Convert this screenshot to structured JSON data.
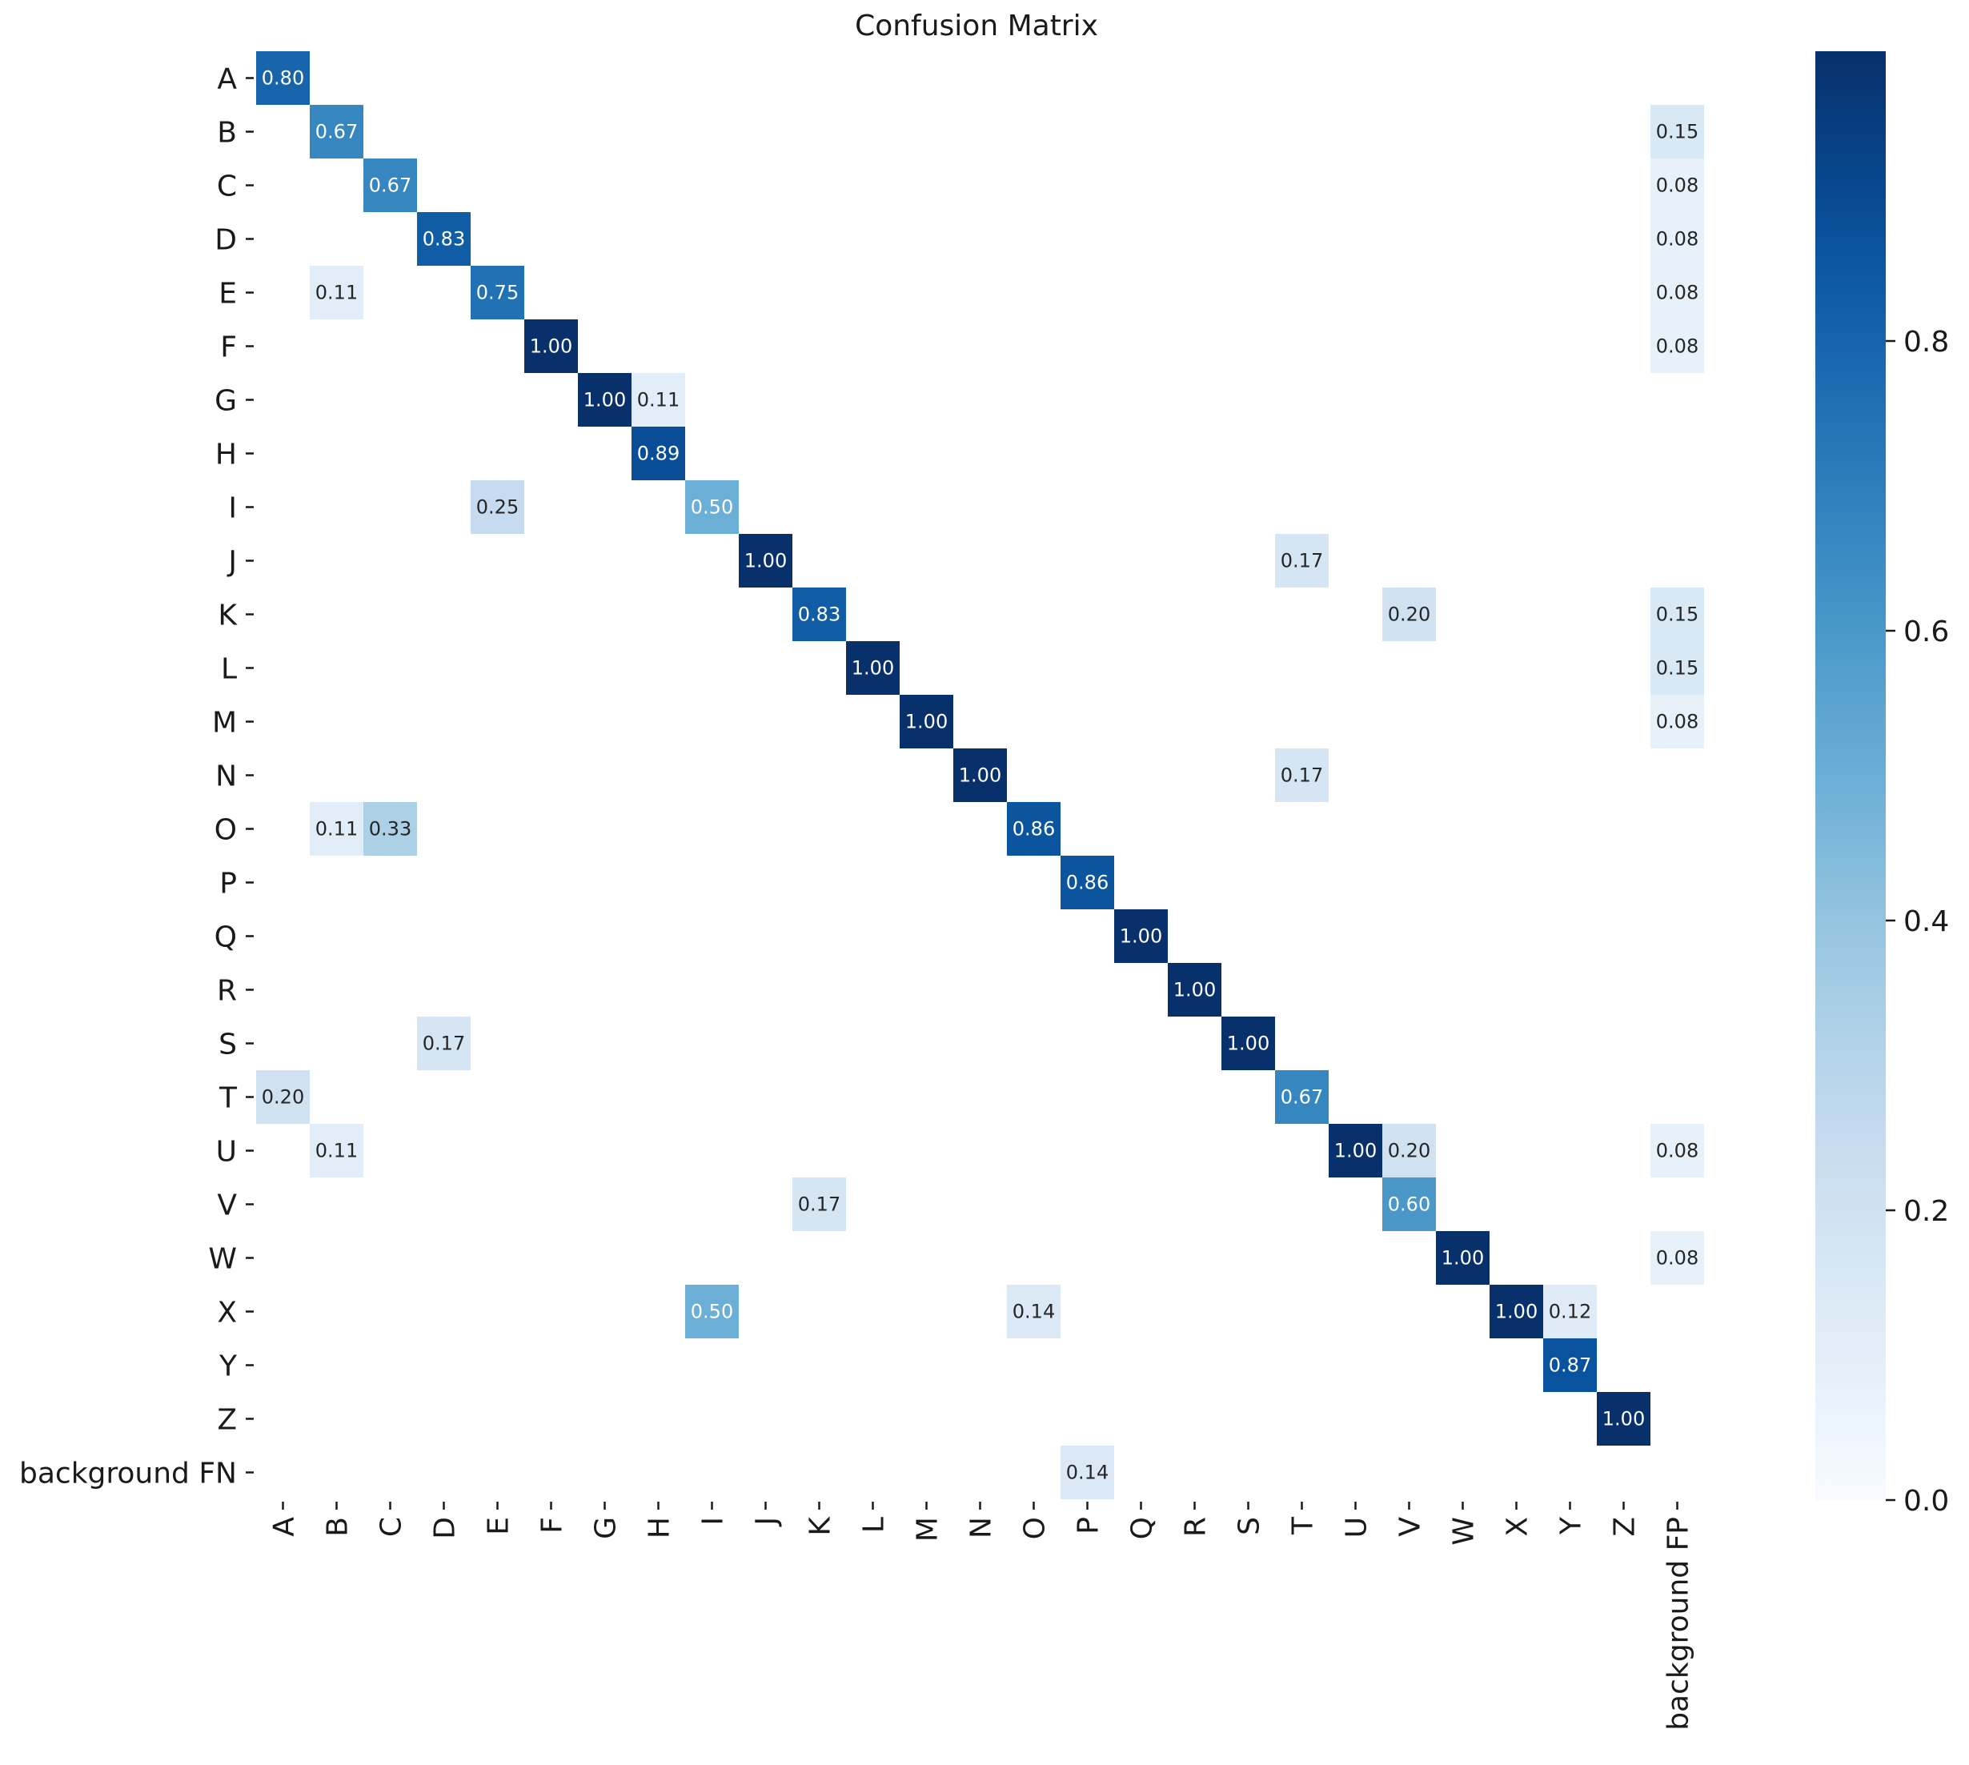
{
  "chart_data": {
    "type": "heatmap",
    "title": "Confusion Matrix",
    "rows": [
      "A",
      "B",
      "C",
      "D",
      "E",
      "F",
      "G",
      "H",
      "I",
      "J",
      "K",
      "L",
      "M",
      "N",
      "O",
      "P",
      "Q",
      "R",
      "S",
      "T",
      "U",
      "V",
      "W",
      "X",
      "Y",
      "Z",
      "background FN"
    ],
    "columns": [
      "A",
      "B",
      "C",
      "D",
      "E",
      "F",
      "G",
      "H",
      "I",
      "J",
      "K",
      "L",
      "M",
      "N",
      "O",
      "P",
      "Q",
      "R",
      "S",
      "T",
      "U",
      "V",
      "W",
      "X",
      "Y",
      "Z",
      "background FP"
    ],
    "cells": [
      {
        "row": "A",
        "col": "A",
        "value": 0.8,
        "label": "0.80"
      },
      {
        "row": "B",
        "col": "B",
        "value": 0.67,
        "label": "0.67"
      },
      {
        "row": "B",
        "col": "background FP",
        "value": 0.15,
        "label": "0.15"
      },
      {
        "row": "C",
        "col": "C",
        "value": 0.67,
        "label": "0.67"
      },
      {
        "row": "C",
        "col": "background FP",
        "value": 0.08,
        "label": "0.08"
      },
      {
        "row": "D",
        "col": "D",
        "value": 0.83,
        "label": "0.83"
      },
      {
        "row": "D",
        "col": "background FP",
        "value": 0.08,
        "label": "0.08"
      },
      {
        "row": "E",
        "col": "B",
        "value": 0.11,
        "label": "0.11"
      },
      {
        "row": "E",
        "col": "E",
        "value": 0.75,
        "label": "0.75"
      },
      {
        "row": "E",
        "col": "background FP",
        "value": 0.08,
        "label": "0.08"
      },
      {
        "row": "F",
        "col": "F",
        "value": 1.0,
        "label": "1.00"
      },
      {
        "row": "F",
        "col": "background FP",
        "value": 0.08,
        "label": "0.08"
      },
      {
        "row": "G",
        "col": "G",
        "value": 1.0,
        "label": "1.00"
      },
      {
        "row": "G",
        "col": "H",
        "value": 0.11,
        "label": "0.11"
      },
      {
        "row": "H",
        "col": "H",
        "value": 0.89,
        "label": "0.89"
      },
      {
        "row": "I",
        "col": "E",
        "value": 0.25,
        "label": "0.25"
      },
      {
        "row": "I",
        "col": "I",
        "value": 0.5,
        "label": "0.50"
      },
      {
        "row": "J",
        "col": "J",
        "value": 1.0,
        "label": "1.00"
      },
      {
        "row": "J",
        "col": "T",
        "value": 0.17,
        "label": "0.17"
      },
      {
        "row": "K",
        "col": "K",
        "value": 0.83,
        "label": "0.83"
      },
      {
        "row": "K",
        "col": "V",
        "value": 0.2,
        "label": "0.20"
      },
      {
        "row": "K",
        "col": "background FP",
        "value": 0.15,
        "label": "0.15"
      },
      {
        "row": "L",
        "col": "L",
        "value": 1.0,
        "label": "1.00"
      },
      {
        "row": "L",
        "col": "background FP",
        "value": 0.15,
        "label": "0.15"
      },
      {
        "row": "M",
        "col": "M",
        "value": 1.0,
        "label": "1.00"
      },
      {
        "row": "M",
        "col": "background FP",
        "value": 0.08,
        "label": "0.08"
      },
      {
        "row": "N",
        "col": "N",
        "value": 1.0,
        "label": "1.00"
      },
      {
        "row": "N",
        "col": "T",
        "value": 0.17,
        "label": "0.17"
      },
      {
        "row": "O",
        "col": "B",
        "value": 0.11,
        "label": "0.11"
      },
      {
        "row": "O",
        "col": "C",
        "value": 0.33,
        "label": "0.33"
      },
      {
        "row": "O",
        "col": "O",
        "value": 0.86,
        "label": "0.86"
      },
      {
        "row": "P",
        "col": "P",
        "value": 0.86,
        "label": "0.86"
      },
      {
        "row": "Q",
        "col": "Q",
        "value": 1.0,
        "label": "1.00"
      },
      {
        "row": "R",
        "col": "R",
        "value": 1.0,
        "label": "1.00"
      },
      {
        "row": "S",
        "col": "D",
        "value": 0.17,
        "label": "0.17"
      },
      {
        "row": "S",
        "col": "S",
        "value": 1.0,
        "label": "1.00"
      },
      {
        "row": "T",
        "col": "A",
        "value": 0.2,
        "label": "0.20"
      },
      {
        "row": "T",
        "col": "T",
        "value": 0.67,
        "label": "0.67"
      },
      {
        "row": "U",
        "col": "B",
        "value": 0.11,
        "label": "0.11"
      },
      {
        "row": "U",
        "col": "U",
        "value": 1.0,
        "label": "1.00"
      },
      {
        "row": "U",
        "col": "V",
        "value": 0.2,
        "label": "0.20"
      },
      {
        "row": "U",
        "col": "background FP",
        "value": 0.08,
        "label": "0.08"
      },
      {
        "row": "V",
        "col": "K",
        "value": 0.17,
        "label": "0.17"
      },
      {
        "row": "V",
        "col": "V",
        "value": 0.6,
        "label": "0.60"
      },
      {
        "row": "W",
        "col": "W",
        "value": 1.0,
        "label": "1.00"
      },
      {
        "row": "W",
        "col": "background FP",
        "value": 0.08,
        "label": "0.08"
      },
      {
        "row": "X",
        "col": "I",
        "value": 0.5,
        "label": "0.50"
      },
      {
        "row": "X",
        "col": "O",
        "value": 0.14,
        "label": "0.14"
      },
      {
        "row": "X",
        "col": "X",
        "value": 1.0,
        "label": "1.00"
      },
      {
        "row": "X",
        "col": "Y",
        "value": 0.12,
        "label": "0.12"
      },
      {
        "row": "Y",
        "col": "Y",
        "value": 0.87,
        "label": "0.87"
      },
      {
        "row": "Z",
        "col": "Z",
        "value": 1.0,
        "label": "1.00"
      },
      {
        "row": "background FN",
        "col": "P",
        "value": 0.14,
        "label": "0.14"
      }
    ],
    "colorbar": {
      "colormap": "Blues",
      "range": [
        0.0,
        1.0
      ],
      "ticks": [
        0.0,
        0.2,
        0.4,
        0.6,
        0.8
      ],
      "tick_labels": [
        "0.0",
        "0.2",
        "0.4",
        "0.6",
        "0.8"
      ]
    },
    "colors": {
      "low": "#f7fbff",
      "high": "#08306b",
      "text_dark": "#262626",
      "text_light": "#ffffff"
    }
  }
}
